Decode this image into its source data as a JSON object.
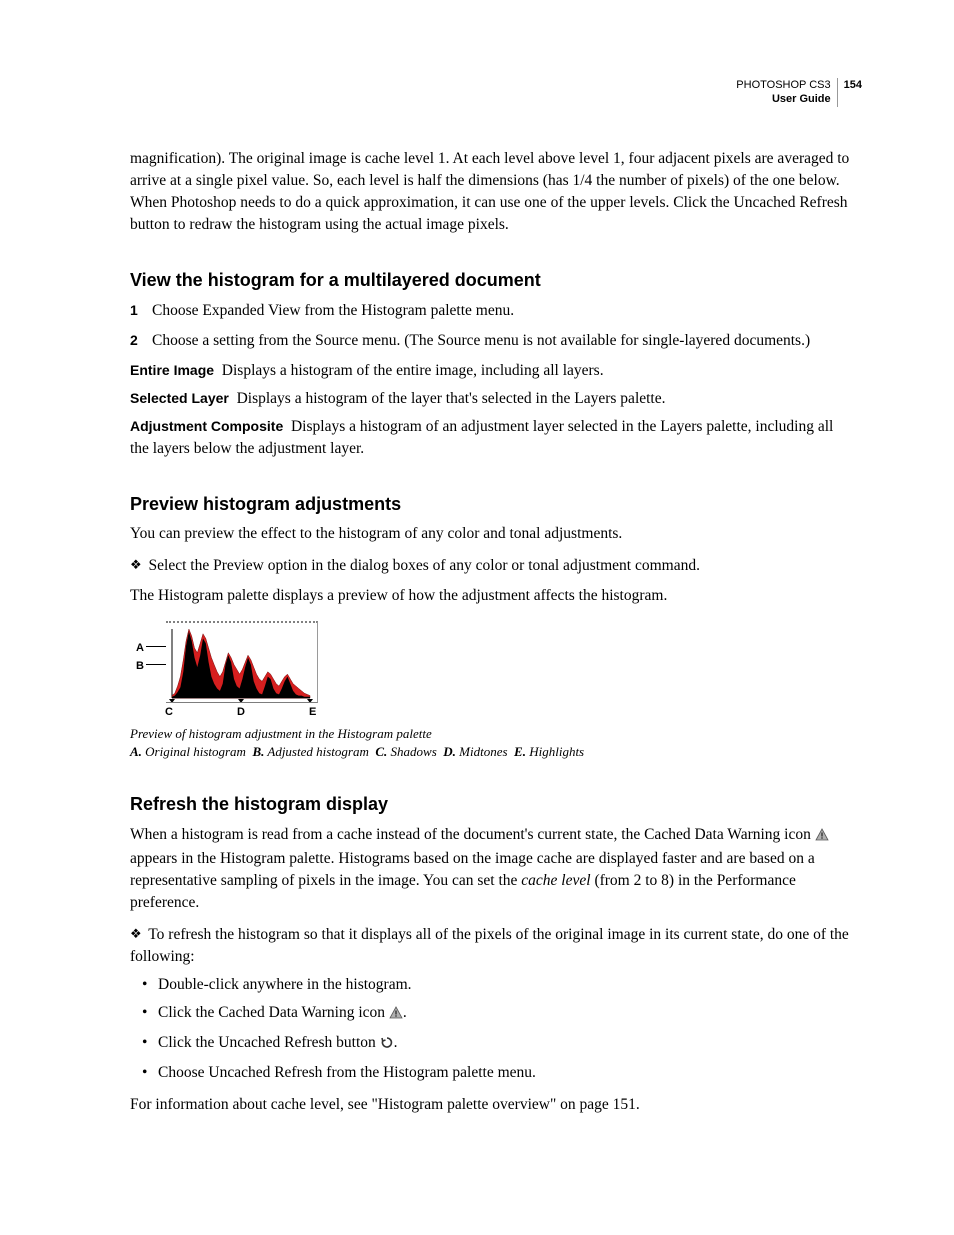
{
  "header": {
    "product": "PHOTOSHOP CS3",
    "guide": "User Guide",
    "page_number": "154"
  },
  "intro_paragraph": "magnification). The original image is cache level 1. At each level above level 1, four adjacent pixels are averaged to arrive at a single pixel value. So, each level is half the dimensions (has 1/4 the number of pixels) of the one below. When Photoshop needs to do a quick approximation, it can use one of the upper levels. Click the Uncached Refresh button to redraw the histogram using the actual image pixels.",
  "section1": {
    "heading": "View the histogram for a multilayered document",
    "steps": [
      "Choose Expanded View from the Histogram palette menu.",
      "Choose a setting from the Source menu. (The Source menu is not available for single-layered documents.)"
    ],
    "terms": [
      {
        "term": "Entire Image",
        "desc": "Displays a histogram of the entire image, including all layers."
      },
      {
        "term": "Selected Layer",
        "desc": "Displays a histogram of the layer that's selected in the Layers palette."
      },
      {
        "term": "Adjustment Composite",
        "desc": "Displays a histogram of an adjustment layer selected in the Layers palette, including all the layers below the adjustment layer."
      }
    ]
  },
  "section2": {
    "heading": "Preview histogram adjustments",
    "p1": "You can preview the effect to the histogram of any color and tonal adjustments.",
    "p2": "Select the Preview option in the dialog boxes of any color or tonal adjustment command.",
    "p3": "The Histogram palette displays a preview of how the adjustment affects the histogram.",
    "figure": {
      "labels": {
        "A": "A",
        "B": "B",
        "C": "C",
        "D": "D",
        "E": "E"
      },
      "caption_title": "Preview of histogram adjustment in the Histogram palette",
      "caption_legend_parts": {
        "A": "Original histogram",
        "B": "Adjusted histogram",
        "C": "Shadows",
        "D": "Midtones",
        "E": "Highlights"
      },
      "colors": {
        "original_fill": "#d61f1f",
        "adjusted_fill": "#000000",
        "axis": "#000000",
        "box_border": "#9a9a9a"
      },
      "original_values": [
        2,
        4,
        10,
        18,
        32,
        48,
        58,
        52,
        42,
        38,
        46,
        54,
        50,
        42,
        34,
        28,
        22,
        18,
        22,
        30,
        38,
        34,
        28,
        24,
        20,
        24,
        30,
        36,
        32,
        26,
        20,
        16,
        14,
        18,
        22,
        20,
        16,
        12,
        10,
        14,
        18,
        20,
        16,
        12,
        10,
        8,
        6,
        4,
        3,
        2
      ],
      "adjusted_values": [
        1,
        2,
        5,
        9,
        22,
        44,
        56,
        48,
        34,
        26,
        36,
        50,
        46,
        30,
        18,
        12,
        8,
        6,
        12,
        28,
        36,
        30,
        16,
        10,
        8,
        16,
        26,
        34,
        28,
        14,
        8,
        4,
        3,
        10,
        18,
        16,
        8,
        4,
        3,
        8,
        14,
        18,
        12,
        6,
        3,
        2,
        2,
        1,
        1,
        1
      ]
    }
  },
  "section3": {
    "heading": "Refresh the histogram display",
    "p1_a": "When a histogram is read from a cache instead of the document's current state, the Cached Data Warning icon ",
    "p1_b": " appears in the Histogram palette. Histograms based on the image cache are displayed faster and are based on a representative sampling of pixels in the image. You can set the ",
    "p1_italic": "cache level",
    "p1_c": " (from 2 to 8) in the Performance preference.",
    "p2": "To refresh the histogram so that it displays all of the pixels of the original image in its current state, do one of the following:",
    "bullets": {
      "b1": "Double-click anywhere in the histogram.",
      "b2_a": "Click the Cached Data Warning icon ",
      "b2_b": ".",
      "b3_a": "Click the Uncached Refresh button ",
      "b3_b": ".",
      "b4": "Choose Uncached Refresh from the Histogram palette menu."
    },
    "p3": "For information about cache level, see \"Histogram palette overview\" on page 151."
  }
}
